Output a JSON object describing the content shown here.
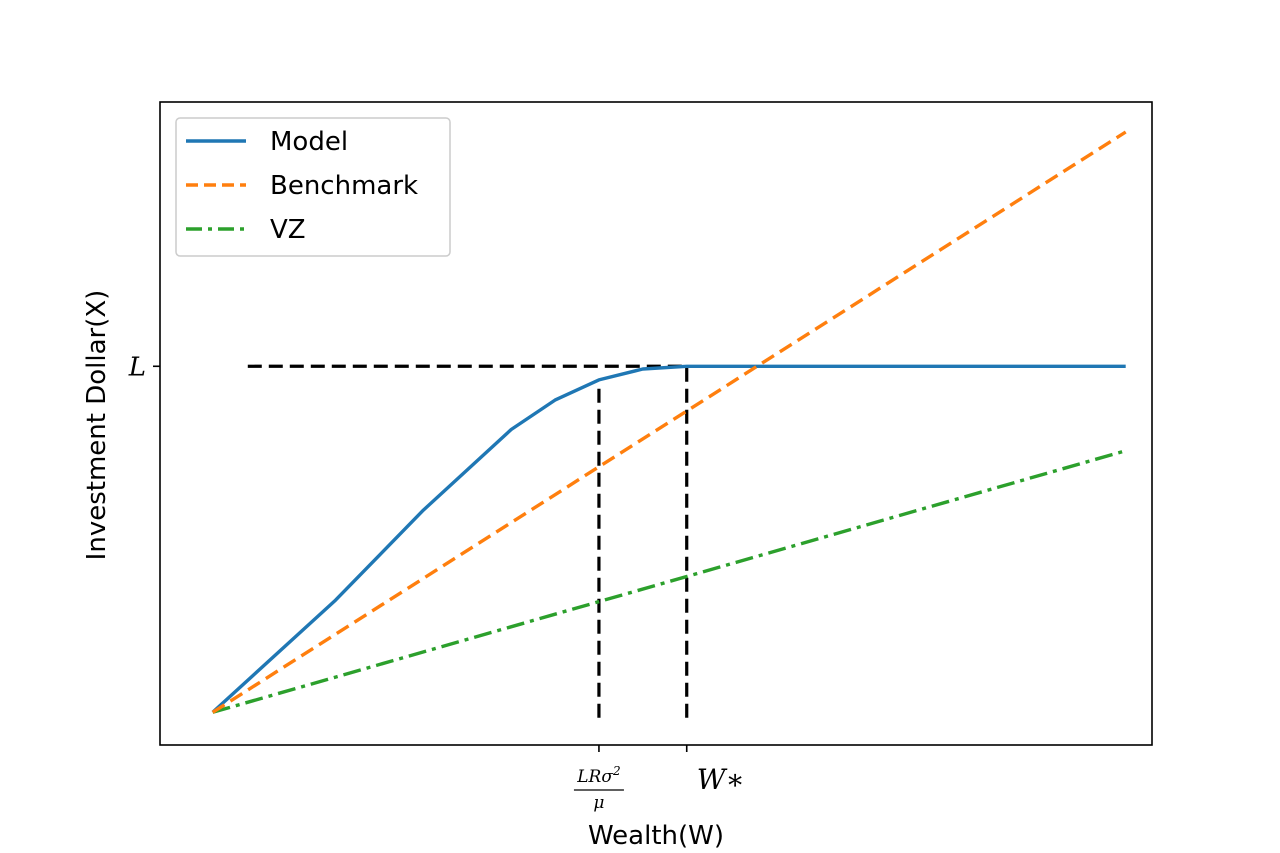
{
  "chart_data": {
    "type": "line",
    "title": "",
    "xlabel": "Wealth(W)",
    "ylabel": "Investment Dollar(X)",
    "xlim": [
      -0.1,
      1.03
    ],
    "ylim": [
      -0.1,
      1.08
    ],
    "grid": false,
    "legend_position": "top-left",
    "x_ticks": [
      {
        "value": 0.4,
        "num": "LRσ",
        "sup": "2",
        "den": "μ"
      },
      {
        "value": 0.5,
        "label": "W∗"
      }
    ],
    "y_ticks": [
      {
        "value": 0.595,
        "label": "L"
      }
    ],
    "series": [
      {
        "name": "Model",
        "color": "#1f77b4",
        "style": "solid",
        "x": [
          -0.04,
          0.1,
          0.2,
          0.3,
          0.35,
          0.4,
          0.45,
          0.5,
          0.6,
          0.7,
          0.8,
          0.9,
          1.0
        ],
        "y": [
          -0.04,
          0.166,
          0.331,
          0.479,
          0.533,
          0.57,
          0.59,
          0.595,
          0.595,
          0.595,
          0.595,
          0.595,
          0.595
        ]
      },
      {
        "name": "Benchmark",
        "color": "#ff7f0e",
        "style": "dashed",
        "x": [
          -0.04,
          1.0
        ],
        "y": [
          -0.04,
          1.025
        ]
      },
      {
        "name": "VZ",
        "color": "#2ca02c",
        "style": "dashdot",
        "x": [
          -0.04,
          1.0
        ],
        "y": [
          -0.04,
          0.44
        ]
      }
    ],
    "reference_lines": [
      {
        "orientation": "horizontal",
        "x": [
          0.0,
          0.5
        ],
        "y": [
          0.595,
          0.595
        ],
        "color": "#000000",
        "style": "dashed"
      },
      {
        "orientation": "vertical",
        "x": [
          0.4,
          0.4
        ],
        "y": [
          -0.05,
          0.56
        ],
        "color": "#000000",
        "style": "dashed"
      },
      {
        "orientation": "vertical",
        "x": [
          0.5,
          0.5
        ],
        "y": [
          -0.05,
          0.595
        ],
        "color": "#000000",
        "style": "dashed"
      }
    ]
  }
}
